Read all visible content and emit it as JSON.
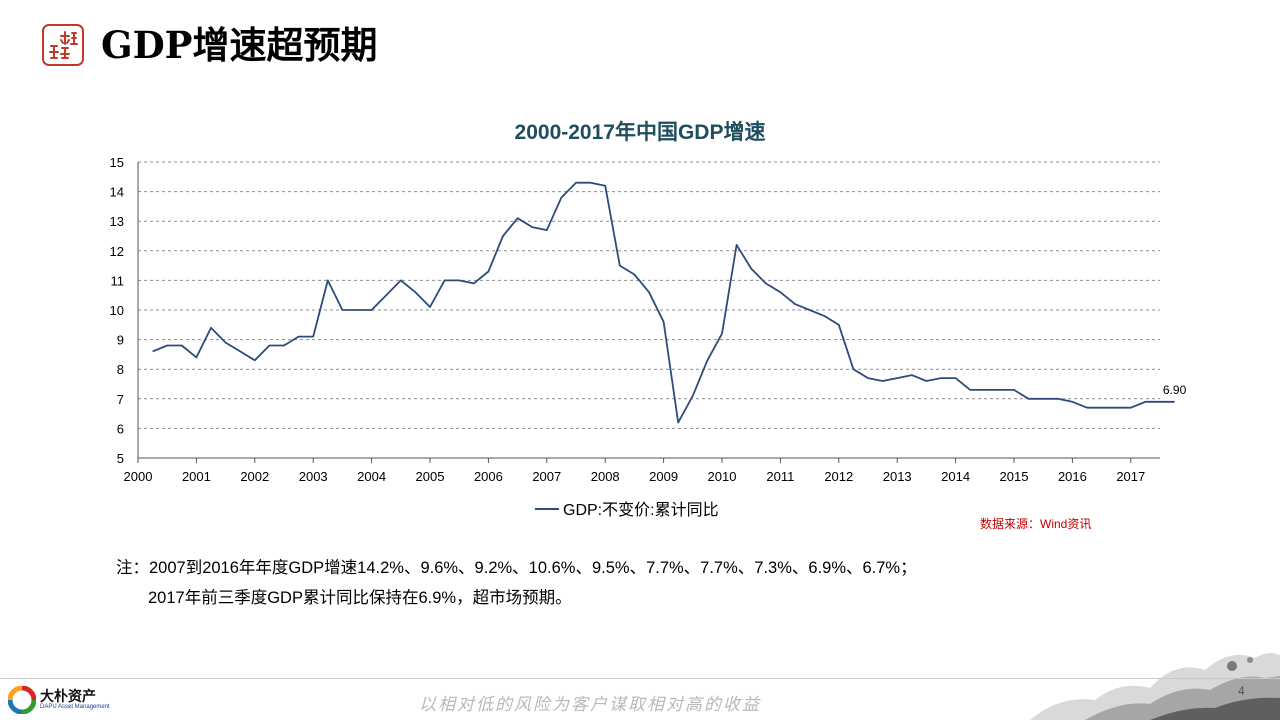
{
  "slide": {
    "title": "GDP增速超预期",
    "page_number": "4",
    "tagline": "以相对低的风险为客户谋取相对高的收益",
    "source": "数据来源：Wind资讯",
    "notes": [
      "注：2007到2016年年度GDP增速14.2%、9.6%、9.2%、10.6%、9.5%、7.7%、7.7%、7.3%、6.9%、6.7%；",
      "2017年前三季度GDP累计同比保持在6.9%，超市场预期。"
    ],
    "brand": {
      "name": "大朴资产",
      "subtitle": "DAPU Asset Management"
    }
  },
  "colors": {
    "series": "#2e4c7a",
    "chart_title": "#1f4e5f",
    "grid": "#8c8c8c",
    "source_text": "#c00000",
    "seal": "#c0392b"
  },
  "chart_data": {
    "type": "line",
    "title": "2000-2017年中国GDP增速",
    "xlabel": "",
    "ylabel": "",
    "xlim": [
      2000,
      2017.5
    ],
    "ylim": [
      5,
      15
    ],
    "y_ticks": [
      5,
      6,
      7,
      8,
      9,
      10,
      11,
      12,
      13,
      14,
      15
    ],
    "x_ticks": [
      2000,
      2001,
      2002,
      2003,
      2004,
      2005,
      2006,
      2007,
      2008,
      2009,
      2010,
      2011,
      2012,
      2013,
      2014,
      2015,
      2016,
      2017
    ],
    "grid": "horizontal dashed",
    "legend": "bottom-center",
    "series": [
      {
        "name": "GDP:不变价:累计同比",
        "x": [
          "2000-03",
          "2000-06",
          "2000-09",
          "2000-12",
          "2001-03",
          "2001-06",
          "2001-09",
          "2001-12",
          "2002-03",
          "2002-06",
          "2002-09",
          "2002-12",
          "2003-03",
          "2003-06",
          "2003-09",
          "2003-12",
          "2004-03",
          "2004-06",
          "2004-09",
          "2004-12",
          "2005-03",
          "2005-06",
          "2005-09",
          "2005-12",
          "2006-03",
          "2006-06",
          "2006-09",
          "2006-12",
          "2007-03",
          "2007-06",
          "2007-09",
          "2007-12",
          "2008-03",
          "2008-06",
          "2008-09",
          "2008-12",
          "2009-03",
          "2009-06",
          "2009-09",
          "2009-12",
          "2010-03",
          "2010-06",
          "2010-09",
          "2010-12",
          "2011-03",
          "2011-06",
          "2011-09",
          "2011-12",
          "2012-03",
          "2012-06",
          "2012-09",
          "2012-12",
          "2013-03",
          "2013-06",
          "2013-09",
          "2013-12",
          "2014-03",
          "2014-06",
          "2014-09",
          "2014-12",
          "2015-03",
          "2015-06",
          "2015-09",
          "2015-12",
          "2016-03",
          "2016-06",
          "2016-09",
          "2016-12",
          "2017-03",
          "2017-06",
          "2017-09"
        ],
        "values": [
          8.6,
          8.8,
          8.8,
          8.4,
          9.4,
          8.9,
          8.6,
          8.3,
          8.8,
          8.8,
          9.1,
          9.1,
          11.0,
          10.0,
          10.0,
          10.0,
          10.5,
          11.0,
          10.6,
          10.1,
          11.0,
          11.0,
          10.9,
          11.3,
          12.5,
          13.1,
          12.8,
          12.7,
          13.8,
          14.3,
          14.3,
          14.2,
          11.5,
          11.2,
          10.6,
          9.6,
          6.2,
          7.1,
          8.3,
          9.2,
          12.2,
          11.4,
          10.9,
          10.6,
          10.2,
          10.0,
          9.8,
          9.5,
          8.0,
          7.7,
          7.6,
          7.7,
          7.8,
          7.6,
          7.7,
          7.7,
          7.3,
          7.3,
          7.3,
          7.3,
          7.0,
          7.0,
          7.0,
          6.9,
          6.7,
          6.7,
          6.7,
          6.7,
          6.9,
          6.9,
          6.9
        ]
      }
    ],
    "annotations": [
      {
        "x": "2017-09",
        "text": "6.90"
      }
    ]
  }
}
